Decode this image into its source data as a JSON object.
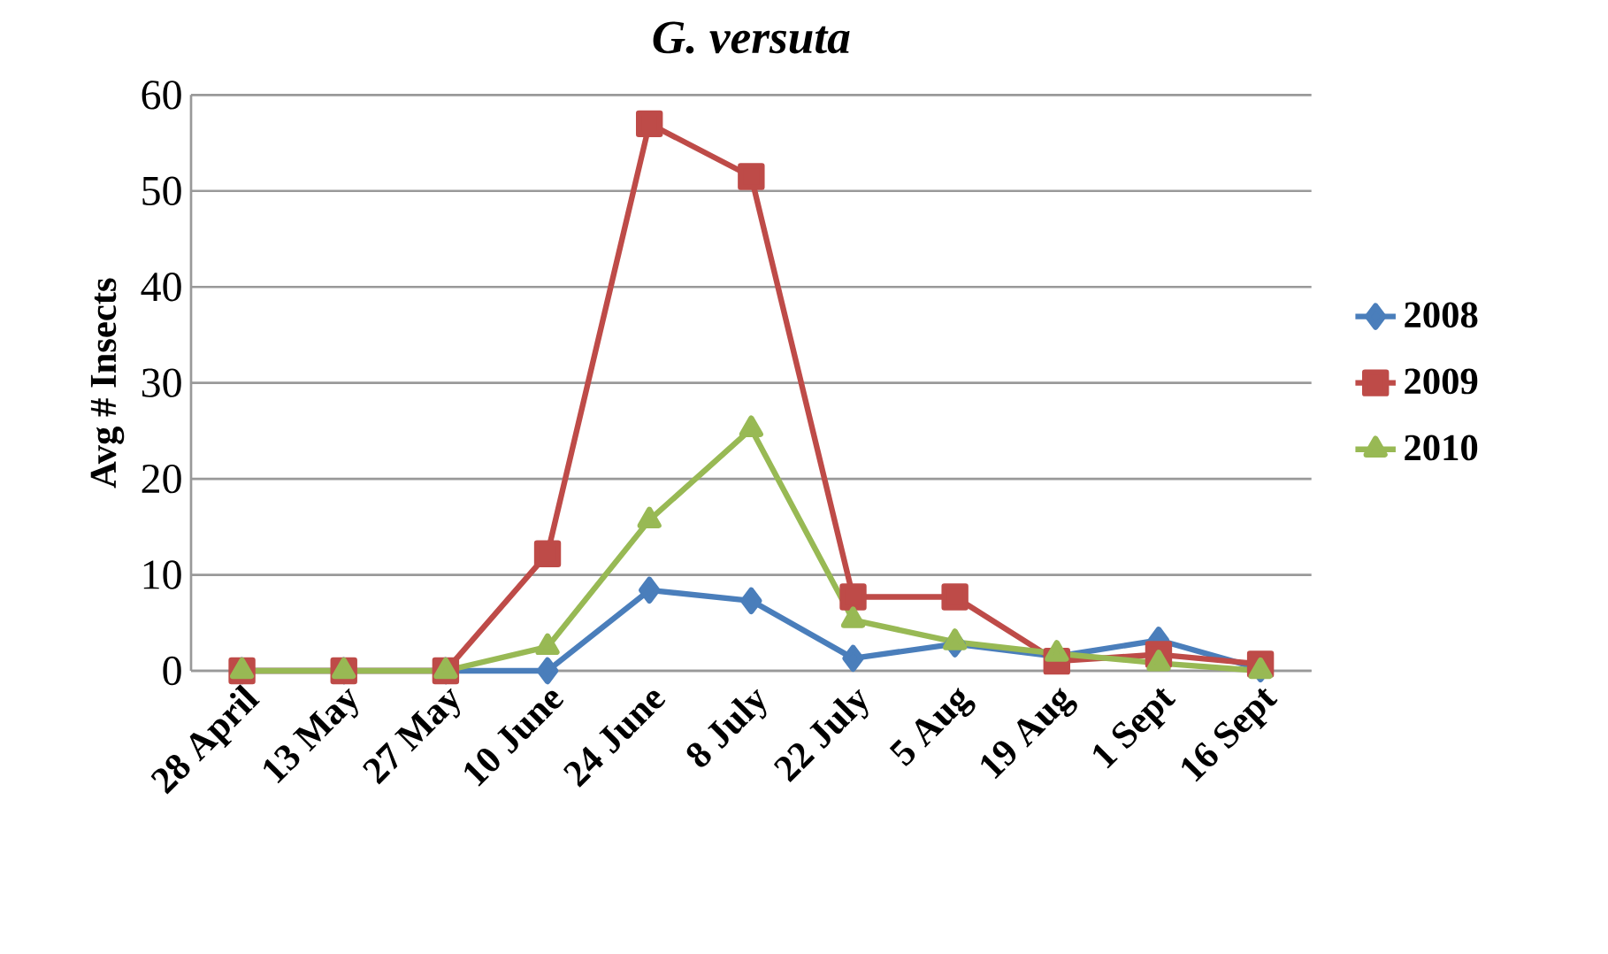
{
  "chart_data": {
    "type": "line",
    "title": "G. versuta",
    "ylabel": "Avg # Insects",
    "categories": [
      "28 April",
      "13 May",
      "27 May",
      "10 June",
      "24 June",
      "8 July",
      "22 July",
      "5 Aug",
      "19 Aug",
      "1 Sept",
      "16 Sept"
    ],
    "series": [
      {
        "name": "2008",
        "color": "#4a7ebb",
        "marker": "diamond",
        "values": [
          0,
          0,
          0,
          0,
          8.4,
          7.3,
          1.3,
          2.8,
          1.5,
          3.2,
          0.2
        ]
      },
      {
        "name": "2009",
        "color": "#be4b48",
        "marker": "square",
        "values": [
          0,
          0,
          0,
          12.2,
          57,
          51.5,
          7.7,
          7.7,
          1,
          1.7,
          0.7
        ]
      },
      {
        "name": "2010",
        "color": "#98b954",
        "marker": "triangle",
        "values": [
          0,
          0,
          0,
          2.5,
          15.7,
          25.2,
          5.3,
          3,
          1.8,
          0.8,
          0
        ]
      }
    ],
    "ylim": [
      0,
      60
    ],
    "yticks": [
      0,
      10,
      20,
      30,
      40,
      50,
      60
    ],
    "grid": "y",
    "legend": "right",
    "line_style": "solid"
  }
}
